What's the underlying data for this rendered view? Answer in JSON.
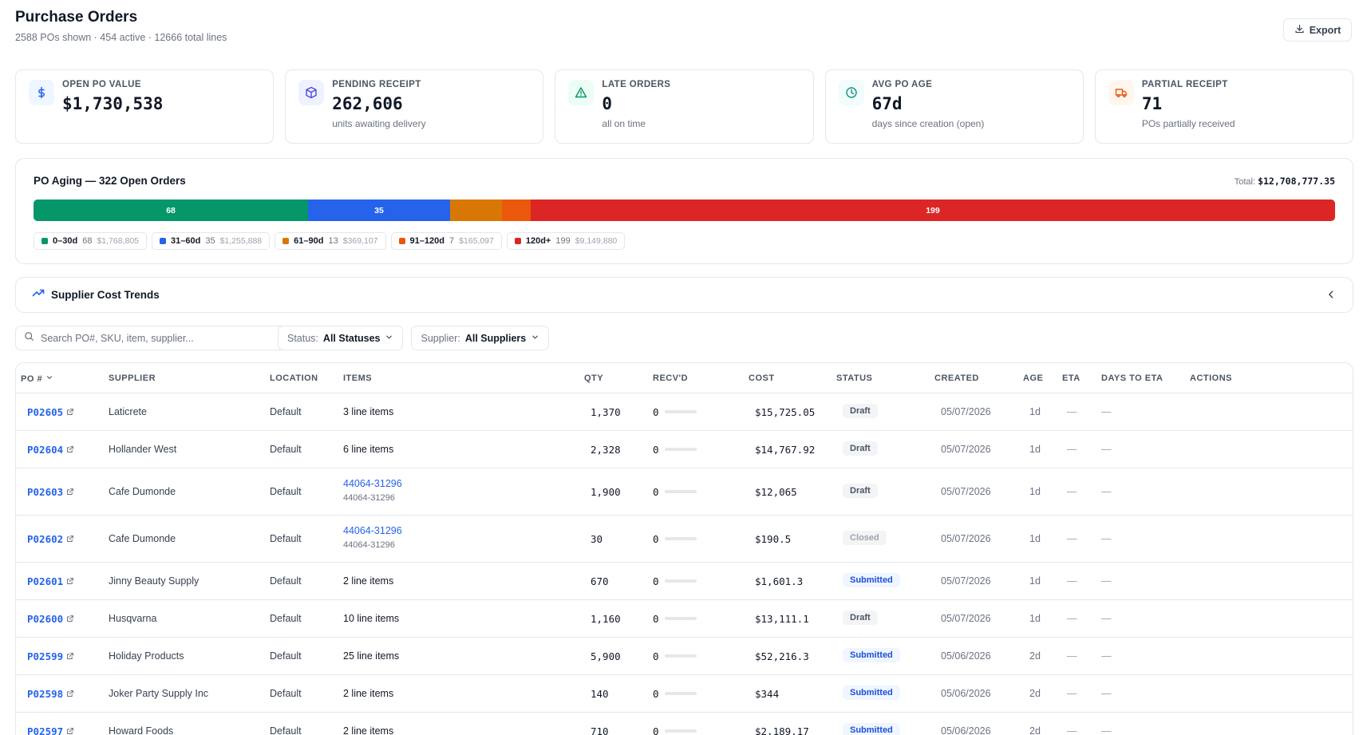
{
  "header": {
    "title": "Purchase Orders",
    "subtitle": "2588 POs shown · 454 active · 12666 total lines",
    "export_label": "Export"
  },
  "kpis": [
    {
      "label": "OPEN PO VALUE",
      "value": "$1,730,538",
      "sub": "",
      "icon": "dollar-icon",
      "color": "#2563eb",
      "bg": "#eff6ff"
    },
    {
      "label": "PENDING RECEIPT",
      "value": "262,606",
      "sub": "units awaiting delivery",
      "icon": "package-icon",
      "color": "#4f46e5",
      "bg": "#eef2ff"
    },
    {
      "label": "LATE ORDERS",
      "value": "0",
      "sub": "all on time",
      "icon": "alert-triangle-icon",
      "color": "#059669",
      "bg": "#ecfdf5"
    },
    {
      "label": "AVG PO AGE",
      "value": "67d",
      "sub": "days since creation (open)",
      "icon": "clock-icon",
      "color": "#0d9488",
      "bg": "#f0fdfa"
    },
    {
      "label": "PARTIAL RECEIPT",
      "value": "71",
      "sub": "POs partially received",
      "icon": "truck-icon",
      "color": "#ea580c",
      "bg": "#fff7ed"
    }
  ],
  "aging": {
    "title": "PO Aging — 322 Open Orders",
    "total_label": "Total:",
    "total_value": "$12,708,777.35",
    "buckets": [
      {
        "name": "0–30d",
        "count": "68",
        "amount": "$1,768,805",
        "bar_label": "68",
        "color": "#059669",
        "share": 0.211
      },
      {
        "name": "31–60d",
        "count": "35",
        "amount": "$1,255,888",
        "bar_label": "35",
        "color": "#2563eb",
        "share": 0.109
      },
      {
        "name": "61–90d",
        "count": "13",
        "amount": "$369,107",
        "bar_label": "",
        "color": "#d97706",
        "share": 0.04
      },
      {
        "name": "91–120d",
        "count": "7",
        "amount": "$165,097",
        "bar_label": "",
        "color": "#ea580c",
        "share": 0.022
      },
      {
        "name": "120d+",
        "count": "199",
        "amount": "$9,149,880",
        "bar_label": "199",
        "color": "#dc2626",
        "share": 0.618
      }
    ]
  },
  "trends": {
    "title": "Supplier Cost Trends"
  },
  "filters": {
    "search_placeholder": "Search PO#, SKU, item, supplier...",
    "status_label": "Status:",
    "status_value": "All Statuses",
    "supplier_label": "Supplier:",
    "supplier_value": "All Suppliers"
  },
  "table": {
    "columns": [
      "PO #",
      "SUPPLIER",
      "LOCATION",
      "ITEMS",
      "QTY",
      "RECV'D",
      "COST",
      "STATUS",
      "CREATED",
      "AGE",
      "ETA",
      "DAYS TO ETA",
      "ACTIONS"
    ],
    "rows": [
      {
        "po": "P02605",
        "supplier": "Laticrete",
        "location": "Default",
        "items": "3 line items",
        "items_sub": "",
        "items_link": false,
        "qty": "1,370",
        "recv": "0",
        "cost": "$15,725.05",
        "status": "Draft",
        "created": "05/07/2026",
        "age": "1d",
        "eta": "—",
        "days_to_eta": "—"
      },
      {
        "po": "P02604",
        "supplier": "Hollander West",
        "location": "Default",
        "items": "6 line items",
        "items_sub": "",
        "items_link": false,
        "qty": "2,328",
        "recv": "0",
        "cost": "$14,767.92",
        "status": "Draft",
        "created": "05/07/2026",
        "age": "1d",
        "eta": "—",
        "days_to_eta": "—"
      },
      {
        "po": "P02603",
        "supplier": "Cafe Dumonde",
        "location": "Default",
        "items": "44064-31296",
        "items_sub": "44064-31296",
        "items_link": true,
        "qty": "1,900",
        "recv": "0",
        "cost": "$12,065",
        "status": "Draft",
        "created": "05/07/2026",
        "age": "1d",
        "eta": "—",
        "days_to_eta": "—"
      },
      {
        "po": "P02602",
        "supplier": "Cafe Dumonde",
        "location": "Default",
        "items": "44064-31296",
        "items_sub": "44064-31296",
        "items_link": true,
        "qty": "30",
        "recv": "0",
        "cost": "$190.5",
        "status": "Closed",
        "created": "05/07/2026",
        "age": "1d",
        "eta": "—",
        "days_to_eta": "—"
      },
      {
        "po": "P02601",
        "supplier": "Jinny Beauty Supply",
        "location": "Default",
        "items": "2 line items",
        "items_sub": "",
        "items_link": false,
        "qty": "670",
        "recv": "0",
        "cost": "$1,601.3",
        "status": "Submitted",
        "created": "05/07/2026",
        "age": "1d",
        "eta": "—",
        "days_to_eta": "—"
      },
      {
        "po": "P02600",
        "supplier": "Husqvarna",
        "location": "Default",
        "items": "10 line items",
        "items_sub": "",
        "items_link": false,
        "qty": "1,160",
        "recv": "0",
        "cost": "$13,111.1",
        "status": "Draft",
        "created": "05/07/2026",
        "age": "1d",
        "eta": "—",
        "days_to_eta": "—"
      },
      {
        "po": "P02599",
        "supplier": "Holiday Products",
        "location": "Default",
        "items": "25 line items",
        "items_sub": "",
        "items_link": false,
        "qty": "5,900",
        "recv": "0",
        "cost": "$52,216.3",
        "status": "Submitted",
        "created": "05/06/2026",
        "age": "2d",
        "eta": "—",
        "days_to_eta": "—"
      },
      {
        "po": "P02598",
        "supplier": "Joker Party Supply Inc",
        "location": "Default",
        "items": "2 line items",
        "items_sub": "",
        "items_link": false,
        "qty": "140",
        "recv": "0",
        "cost": "$344",
        "status": "Submitted",
        "created": "05/06/2026",
        "age": "2d",
        "eta": "—",
        "days_to_eta": "—"
      },
      {
        "po": "P02597",
        "supplier": "Howard Foods",
        "location": "Default",
        "items": "2 line items",
        "items_sub": "",
        "items_link": false,
        "qty": "710",
        "recv": "0",
        "cost": "$2,189.17",
        "status": "Submitted",
        "created": "05/06/2026",
        "age": "2d",
        "eta": "—",
        "days_to_eta": "—"
      }
    ]
  }
}
